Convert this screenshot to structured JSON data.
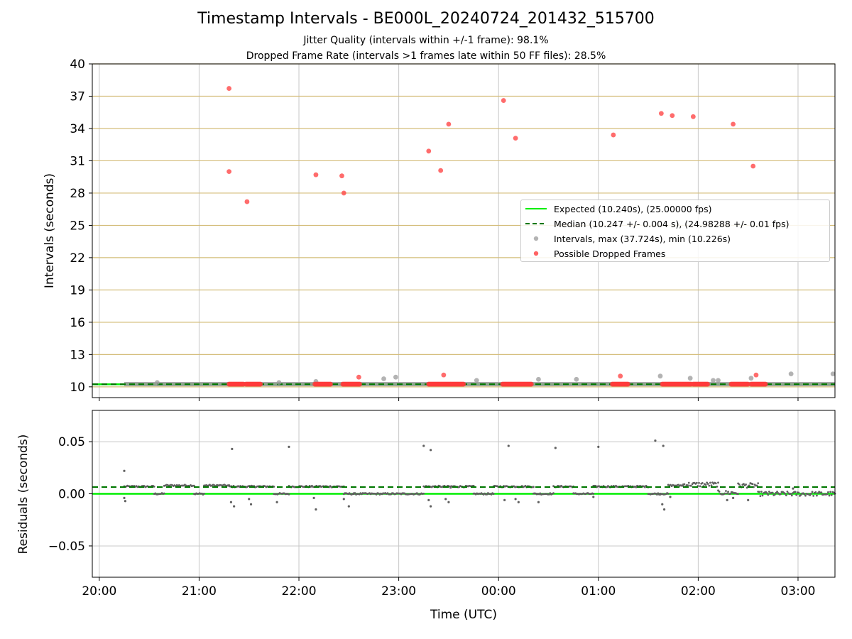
{
  "title": "Timestamp Intervals - BE000L_20240724_201432_515700",
  "subtitle_1": "Jitter Quality (intervals within +/-1 frame): 98.1%",
  "subtitle_2": "Dropped Frame Rate (intervals >1 frames late within 50 FF files): 28.5%",
  "colors": {
    "expected": "#00ee00",
    "median": "#007700",
    "intervals": "#999999",
    "dropped": "#ff3b3b",
    "horizontal_grid": "#d4bd7a",
    "vertical_grid": "#c8c8c8",
    "residual_points": "#606060"
  },
  "chart_data": [
    {
      "type": "scatter",
      "ylabel": "Intervals (seconds)",
      "xlim_hours": [
        19.93,
        27.37
      ],
      "ylim": [
        9,
        40
      ],
      "yticks": [
        10,
        13,
        16,
        19,
        22,
        25,
        28,
        31,
        34,
        37,
        40
      ],
      "ytick_labels": [
        "10",
        "13",
        "16",
        "19",
        "22",
        "25",
        "28",
        "31",
        "34",
        "37",
        "40"
      ],
      "grid": "on",
      "legend_position": "right",
      "legend": [
        "Expected (10.240s), (25.00000 fps)",
        "Median (10.247 +/- 0.004 s), (24.98288 +/- 0.01 fps)",
        "Intervals, max (37.724s), min (10.226s)",
        "Possible Dropped Frames"
      ],
      "expected_interval": 10.24,
      "median_interval": 10.247,
      "baseline_interval": 10.25,
      "baseline_range_hours": [
        20.25,
        27.37
      ],
      "series": [
        {
          "name": "Intervals, max (37.724s), min (10.226s)",
          "points_hours": [
            [
              20.58,
              10.4
            ],
            [
              21.8,
              10.4
            ],
            [
              22.17,
              10.5
            ],
            [
              22.85,
              10.75
            ],
            [
              22.97,
              10.9
            ],
            [
              23.78,
              10.6
            ],
            [
              24.4,
              10.7
            ],
            [
              24.78,
              10.7
            ],
            [
              25.62,
              11.0
            ],
            [
              25.92,
              10.8
            ],
            [
              26.15,
              10.6
            ],
            [
              26.2,
              10.6
            ],
            [
              26.53,
              10.8
            ],
            [
              26.93,
              11.2
            ],
            [
              27.35,
              11.2
            ]
          ]
        },
        {
          "name": "Possible Dropped Frames",
          "points_hours": [
            [
              21.3,
              37.72
            ],
            [
              21.3,
              30.0
            ],
            [
              21.48,
              27.2
            ],
            [
              22.17,
              29.7
            ],
            [
              22.43,
              29.6
            ],
            [
              22.45,
              28.0
            ],
            [
              22.6,
              10.9
            ],
            [
              23.3,
              31.9
            ],
            [
              23.42,
              30.1
            ],
            [
              23.5,
              34.4
            ],
            [
              23.45,
              11.1
            ],
            [
              24.05,
              36.6
            ],
            [
              24.17,
              33.1
            ],
            [
              25.15,
              33.4
            ],
            [
              25.22,
              11.0
            ],
            [
              25.63,
              35.4
            ],
            [
              25.74,
              35.2
            ],
            [
              25.95,
              35.1
            ],
            [
              26.35,
              34.4
            ],
            [
              26.55,
              30.5
            ],
            [
              26.58,
              11.1
            ]
          ],
          "dropped_clusters_hours": [
            [
              21.3,
              21.45
            ],
            [
              21.47,
              21.62
            ],
            [
              22.16,
              22.32
            ],
            [
              22.44,
              22.62
            ],
            [
              23.3,
              23.66
            ],
            [
              24.04,
              24.33
            ],
            [
              25.14,
              25.3
            ],
            [
              25.64,
              25.94
            ],
            [
              25.95,
              26.1
            ],
            [
              26.33,
              26.5
            ],
            [
              26.53,
              26.68
            ]
          ],
          "dropped_value": 10.25
        }
      ]
    },
    {
      "type": "scatter",
      "xlabel": "Time (UTC)",
      "ylabel": "Residuals (seconds)",
      "xlim_hours": [
        19.93,
        27.37
      ],
      "ylim": [
        -0.08,
        0.08
      ],
      "yticks": [
        -0.05,
        0.0,
        0.05
      ],
      "ytick_labels": [
        "−0.05",
        "0.00",
        "0.05"
      ],
      "xticks_hours": [
        20,
        21,
        22,
        23,
        24,
        25,
        26,
        27
      ],
      "xtick_labels": [
        "20:00",
        "21:00",
        "22:00",
        "23:00",
        "00:00",
        "01:00",
        "02:00",
        "03:00"
      ],
      "grid": "on",
      "expected_residual": 0.0,
      "median_residual": 0.0065,
      "residual_level_segments_hours": [
        [
          20.25,
          20.35,
          0.007
        ],
        [
          20.35,
          20.55,
          0.007
        ],
        [
          20.55,
          20.65,
          0.0
        ],
        [
          20.65,
          20.95,
          0.008
        ],
        [
          20.95,
          21.05,
          0.0
        ],
        [
          21.05,
          21.3,
          0.008
        ],
        [
          21.3,
          21.55,
          0.007
        ],
        [
          21.55,
          21.75,
          0.007
        ],
        [
          21.75,
          21.9,
          0.0
        ],
        [
          21.9,
          22.2,
          0.007
        ],
        [
          22.2,
          22.45,
          0.007
        ],
        [
          22.45,
          22.55,
          0.0
        ],
        [
          22.55,
          23.25,
          0.0
        ],
        [
          23.25,
          23.4,
          0.007
        ],
        [
          23.4,
          23.55,
          0.007
        ],
        [
          23.55,
          23.75,
          0.007
        ],
        [
          23.75,
          23.95,
          0.0
        ],
        [
          23.95,
          24.2,
          0.007
        ],
        [
          24.2,
          24.35,
          0.007
        ],
        [
          24.35,
          24.55,
          0.0
        ],
        [
          24.55,
          24.75,
          0.007
        ],
        [
          24.75,
          24.95,
          0.0
        ],
        [
          24.95,
          25.3,
          0.007
        ],
        [
          25.3,
          25.5,
          0.007
        ],
        [
          25.5,
          25.62,
          0.0
        ],
        [
          25.62,
          25.7,
          0.0
        ],
        [
          25.7,
          25.85,
          0.008
        ],
        [
          25.85,
          26.2,
          0.009
        ],
        [
          26.2,
          26.4,
          0.001
        ],
        [
          26.4,
          26.6,
          0.008
        ],
        [
          26.6,
          26.7,
          0.0
        ],
        [
          26.7,
          27.37,
          0.0
        ]
      ],
      "residual_outliers_hours": [
        [
          20.25,
          0.022
        ],
        [
          20.25,
          -0.004
        ],
        [
          20.26,
          -0.007
        ],
        [
          21.33,
          0.043
        ],
        [
          21.32,
          -0.008
        ],
        [
          21.35,
          -0.012
        ],
        [
          21.5,
          -0.005
        ],
        [
          21.52,
          -0.01
        ],
        [
          21.9,
          0.045
        ],
        [
          21.78,
          -0.008
        ],
        [
          22.17,
          -0.015
        ],
        [
          22.15,
          -0.004
        ],
        [
          22.45,
          -0.005
        ],
        [
          22.5,
          -0.012
        ],
        [
          23.25,
          0.046
        ],
        [
          23.32,
          0.042
        ],
        [
          23.3,
          -0.006
        ],
        [
          23.32,
          -0.012
        ],
        [
          23.47,
          -0.005
        ],
        [
          23.5,
          -0.008
        ],
        [
          23.52,
          0.006
        ],
        [
          24.1,
          0.046
        ],
        [
          24.06,
          -0.006
        ],
        [
          24.17,
          -0.005
        ],
        [
          24.2,
          -0.008
        ],
        [
          24.57,
          0.044
        ],
        [
          24.4,
          -0.008
        ],
        [
          25.0,
          0.045
        ],
        [
          24.95,
          -0.003
        ],
        [
          25.57,
          0.051
        ],
        [
          25.65,
          0.046
        ],
        [
          25.64,
          -0.01
        ],
        [
          25.66,
          -0.015
        ],
        [
          25.72,
          -0.003
        ],
        [
          26.29,
          -0.006
        ],
        [
          26.35,
          -0.004
        ],
        [
          26.5,
          -0.006
        ],
        [
          26.95,
          0.005
        ]
      ]
    }
  ]
}
